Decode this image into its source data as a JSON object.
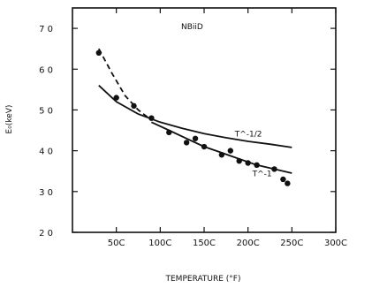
{
  "chart_data": {
    "type": "scatter",
    "annotation": "NBiiD",
    "xlabel": "TEMPERATURE (°F)",
    "ylabel": "E₀(keV)",
    "xlim": [
      0,
      3000
    ],
    "ylim": [
      2.0,
      7.5
    ],
    "x_ticks": [
      {
        "value": 500,
        "label": "50C"
      },
      {
        "value": 1000,
        "label": "100C"
      },
      {
        "value": 1500,
        "label": "150C"
      },
      {
        "value": 2000,
        "label": "200C"
      },
      {
        "value": 2500,
        "label": "250C"
      },
      {
        "value": 3000,
        "label": "300C"
      }
    ],
    "y_ticks": [
      {
        "value": 2.0,
        "label": "2 0"
      },
      {
        "value": 3.0,
        "label": "3 0"
      },
      {
        "value": 4.0,
        "label": "4 0"
      },
      {
        "value": 5.0,
        "label": "5 0"
      },
      {
        "value": 6.0,
        "label": "6 0"
      },
      {
        "value": 7.0,
        "label": "7 0"
      }
    ],
    "points": [
      {
        "x": 300,
        "y": 6.4
      },
      {
        "x": 500,
        "y": 5.3
      },
      {
        "x": 700,
        "y": 5.1
      },
      {
        "x": 900,
        "y": 4.8
      },
      {
        "x": 1100,
        "y": 4.45
      },
      {
        "x": 1300,
        "y": 4.2
      },
      {
        "x": 1400,
        "y": 4.3
      },
      {
        "x": 1500,
        "y": 4.1
      },
      {
        "x": 1700,
        "y": 3.9
      },
      {
        "x": 1800,
        "y": 4.0
      },
      {
        "x": 1900,
        "y": 3.75
      },
      {
        "x": 2000,
        "y": 3.7
      },
      {
        "x": 2100,
        "y": 3.65
      },
      {
        "x": 2300,
        "y": 3.55
      },
      {
        "x": 2400,
        "y": 3.3
      },
      {
        "x": 2450,
        "y": 3.2
      }
    ],
    "curves": [
      {
        "name": "T^-1/2",
        "style": "solid",
        "label_at": {
          "x": 1850,
          "y": 4.35
        },
        "x": [
          300,
          500,
          750,
          1000,
          1250,
          1500,
          1750,
          2000,
          2250,
          2500
        ],
        "y": [
          5.6,
          5.2,
          4.9,
          4.7,
          4.55,
          4.42,
          4.32,
          4.23,
          4.16,
          4.08
        ]
      },
      {
        "name": "T^-1",
        "style": "solid",
        "label_at": {
          "x": 2050,
          "y": 3.38
        },
        "x": [
          900,
          1100,
          1300,
          1500,
          1700,
          1900,
          2100,
          2300,
          2500
        ],
        "y": [
          4.7,
          4.5,
          4.3,
          4.1,
          3.95,
          3.8,
          3.65,
          3.55,
          3.45
        ]
      },
      {
        "name": "",
        "style": "dashed",
        "x": [
          300,
          450,
          600,
          750,
          900
        ],
        "y": [
          6.5,
          5.9,
          5.35,
          5.0,
          4.75
        ]
      }
    ],
    "grid": false,
    "legend": "none"
  }
}
